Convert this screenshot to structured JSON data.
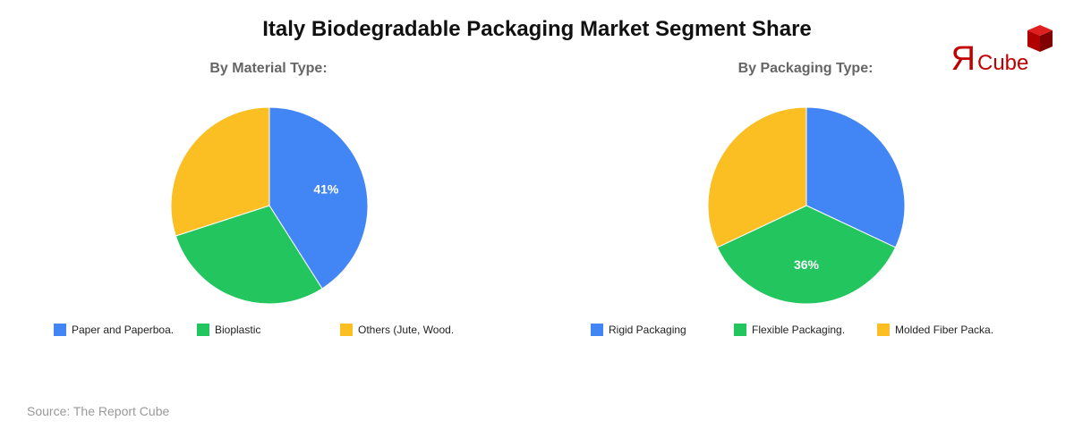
{
  "title": "Italy Biodegradable Packaging Market Segment Share",
  "source": "Source: The Report Cube",
  "logo": {
    "text": "ЯCube",
    "color": "#c00000"
  },
  "chart_data": [
    {
      "type": "pie",
      "title": "By Material Type:",
      "categories": [
        "Paper and Paperboa.",
        "Bioplastic",
        "Others (Jute, Wood."
      ],
      "values": [
        41,
        29,
        30
      ],
      "colors": [
        "#4285f4",
        "#22c55e",
        "#fbbf24"
      ],
      "data_labels": [
        "41%",
        "",
        ""
      ],
      "legend": "bottom"
    },
    {
      "type": "pie",
      "title": "By Packaging Type:",
      "categories": [
        "Rigid Packaging",
        "Flexible Packaging.",
        "Molded Fiber Packa."
      ],
      "values": [
        32,
        36,
        32
      ],
      "colors": [
        "#4285f4",
        "#22c55e",
        "#fbbf24"
      ],
      "data_labels": [
        "",
        "36%",
        ""
      ],
      "legend": "bottom"
    }
  ]
}
